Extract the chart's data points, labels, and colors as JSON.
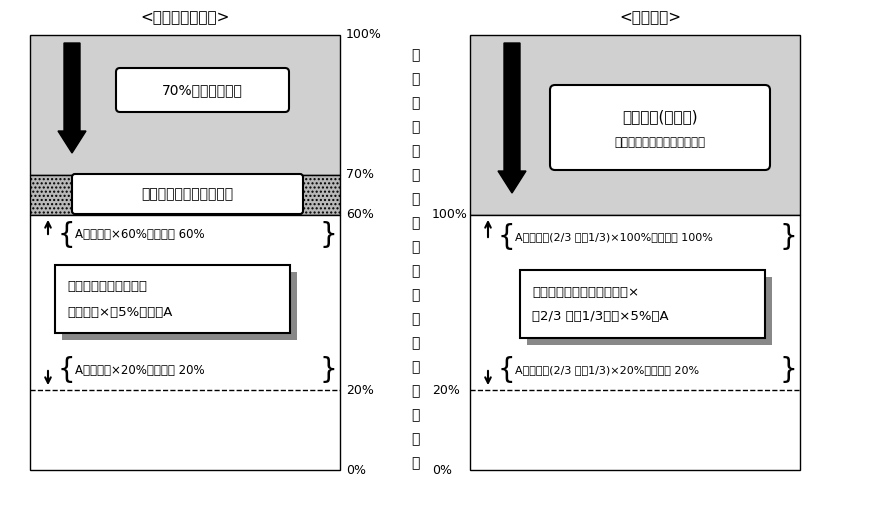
{
  "title_left": "<商業地等の場合>",
  "title_right": "<住宅用地>",
  "y_axis_label": [
    "評",
    "価",
    "額",
    "に",
    "対",
    "す",
    "る",
    "前",
    "年",
    "度",
    "課",
    "税",
    "標",
    "準",
    "額",
    "の",
    "割",
    "合"
  ],
  "left_box1_text": "70%まで引き下げ",
  "left_box2_text": "前年の課税標準額据置き",
  "left_box3_line1": "前年度課税標準額　＋",
  "left_box3_line2": "評価額　×　5%　＝　A",
  "left_brace1": "A＞評価額×60%のときは 60%",
  "left_brace2": "A＜評価額×20%のときは 20%",
  "right_box1_line1": "住宅特例(２／３)",
  "right_box1_line2": "（小規模住宅用地は１／３）",
  "right_brace1": "A＞評価額(2/3 又は1/3)×100%のときは 100%",
  "right_box2_line1": "前年度課税標準額＋評価額×",
  "right_box2_line2": "（2/3 又は1/3）　×5%＝A",
  "right_brace2": "A＜評価額(2/3 又は1/3)×20%のときは 20%",
  "left_pct_100": "100%",
  "left_pct_70": "70%",
  "left_pct_60": "60%",
  "left_pct_20": "20%",
  "left_pct_0": "0%",
  "right_pct_100": "100%",
  "right_pct_20": "20%",
  "right_pct_0": "0%"
}
